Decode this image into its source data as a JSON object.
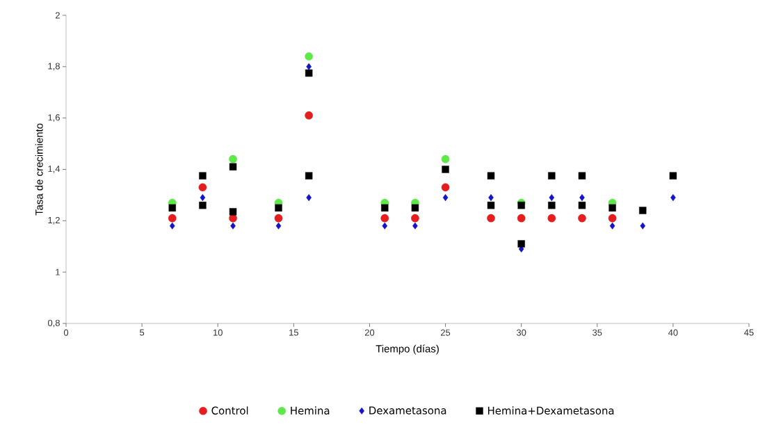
{
  "chart_data": {
    "type": "scatter",
    "xlabel": "Tiempo (días)",
    "ylabel": "Tasa de crecimiento",
    "xlim": [
      0,
      45
    ],
    "xticks": [
      0,
      5,
      10,
      15,
      20,
      25,
      30,
      35,
      40,
      45
    ],
    "ylim": [
      0.8,
      2
    ],
    "yticks": [
      {
        "value": 0.8,
        "label": "0,8"
      },
      1,
      {
        "value": 1.2,
        "label": "1,2"
      },
      {
        "value": 1.4,
        "label": "1,4"
      },
      {
        "value": 1.6,
        "label": "1,6"
      },
      {
        "value": 1.8,
        "label": "1,8"
      },
      2
    ],
    "legend": "bottom",
    "grid": false,
    "series": [
      {
        "name": "Control",
        "color": "#e41e1e",
        "marker": "circle",
        "x": [
          7,
          9,
          11,
          14,
          16,
          21,
          23,
          25,
          28,
          30,
          32,
          34,
          36
        ],
        "values": [
          1.21,
          1.33,
          1.21,
          1.21,
          1.61,
          1.21,
          1.21,
          1.33,
          1.21,
          1.21,
          1.21,
          1.21,
          1.21
        ]
      },
      {
        "name": "Hemina",
        "color": "#5ee84a",
        "marker": "circle",
        "x": [
          7,
          11,
          14,
          16,
          21,
          23,
          25,
          30,
          36
        ],
        "values": [
          1.27,
          1.44,
          1.27,
          1.84,
          1.27,
          1.27,
          1.44,
          1.27,
          1.27
        ]
      },
      {
        "name": "Dexametasona",
        "color": "#1414c8",
        "marker": "diamond",
        "x": [
          7,
          9,
          11,
          14,
          16,
          16,
          21,
          23,
          25,
          28,
          30,
          32,
          34,
          36,
          38,
          40
        ],
        "values": [
          1.18,
          1.29,
          1.18,
          1.18,
          1.8,
          1.29,
          1.18,
          1.18,
          1.29,
          1.29,
          1.09,
          1.29,
          1.29,
          1.18,
          1.18,
          1.29
        ]
      },
      {
        "name": "Hemina+Dexametasona",
        "color": "#000000",
        "marker": "square",
        "x": [
          7,
          9,
          9,
          11,
          11,
          14,
          16,
          16,
          21,
          23,
          25,
          28,
          28,
          30,
          30,
          32,
          32,
          34,
          34,
          36,
          38,
          40
        ],
        "values": [
          1.25,
          1.375,
          1.26,
          1.41,
          1.235,
          1.25,
          1.775,
          1.375,
          1.25,
          1.25,
          1.4,
          1.375,
          1.26,
          1.26,
          1.11,
          1.375,
          1.26,
          1.375,
          1.26,
          1.25,
          1.24,
          1.375
        ]
      }
    ]
  }
}
